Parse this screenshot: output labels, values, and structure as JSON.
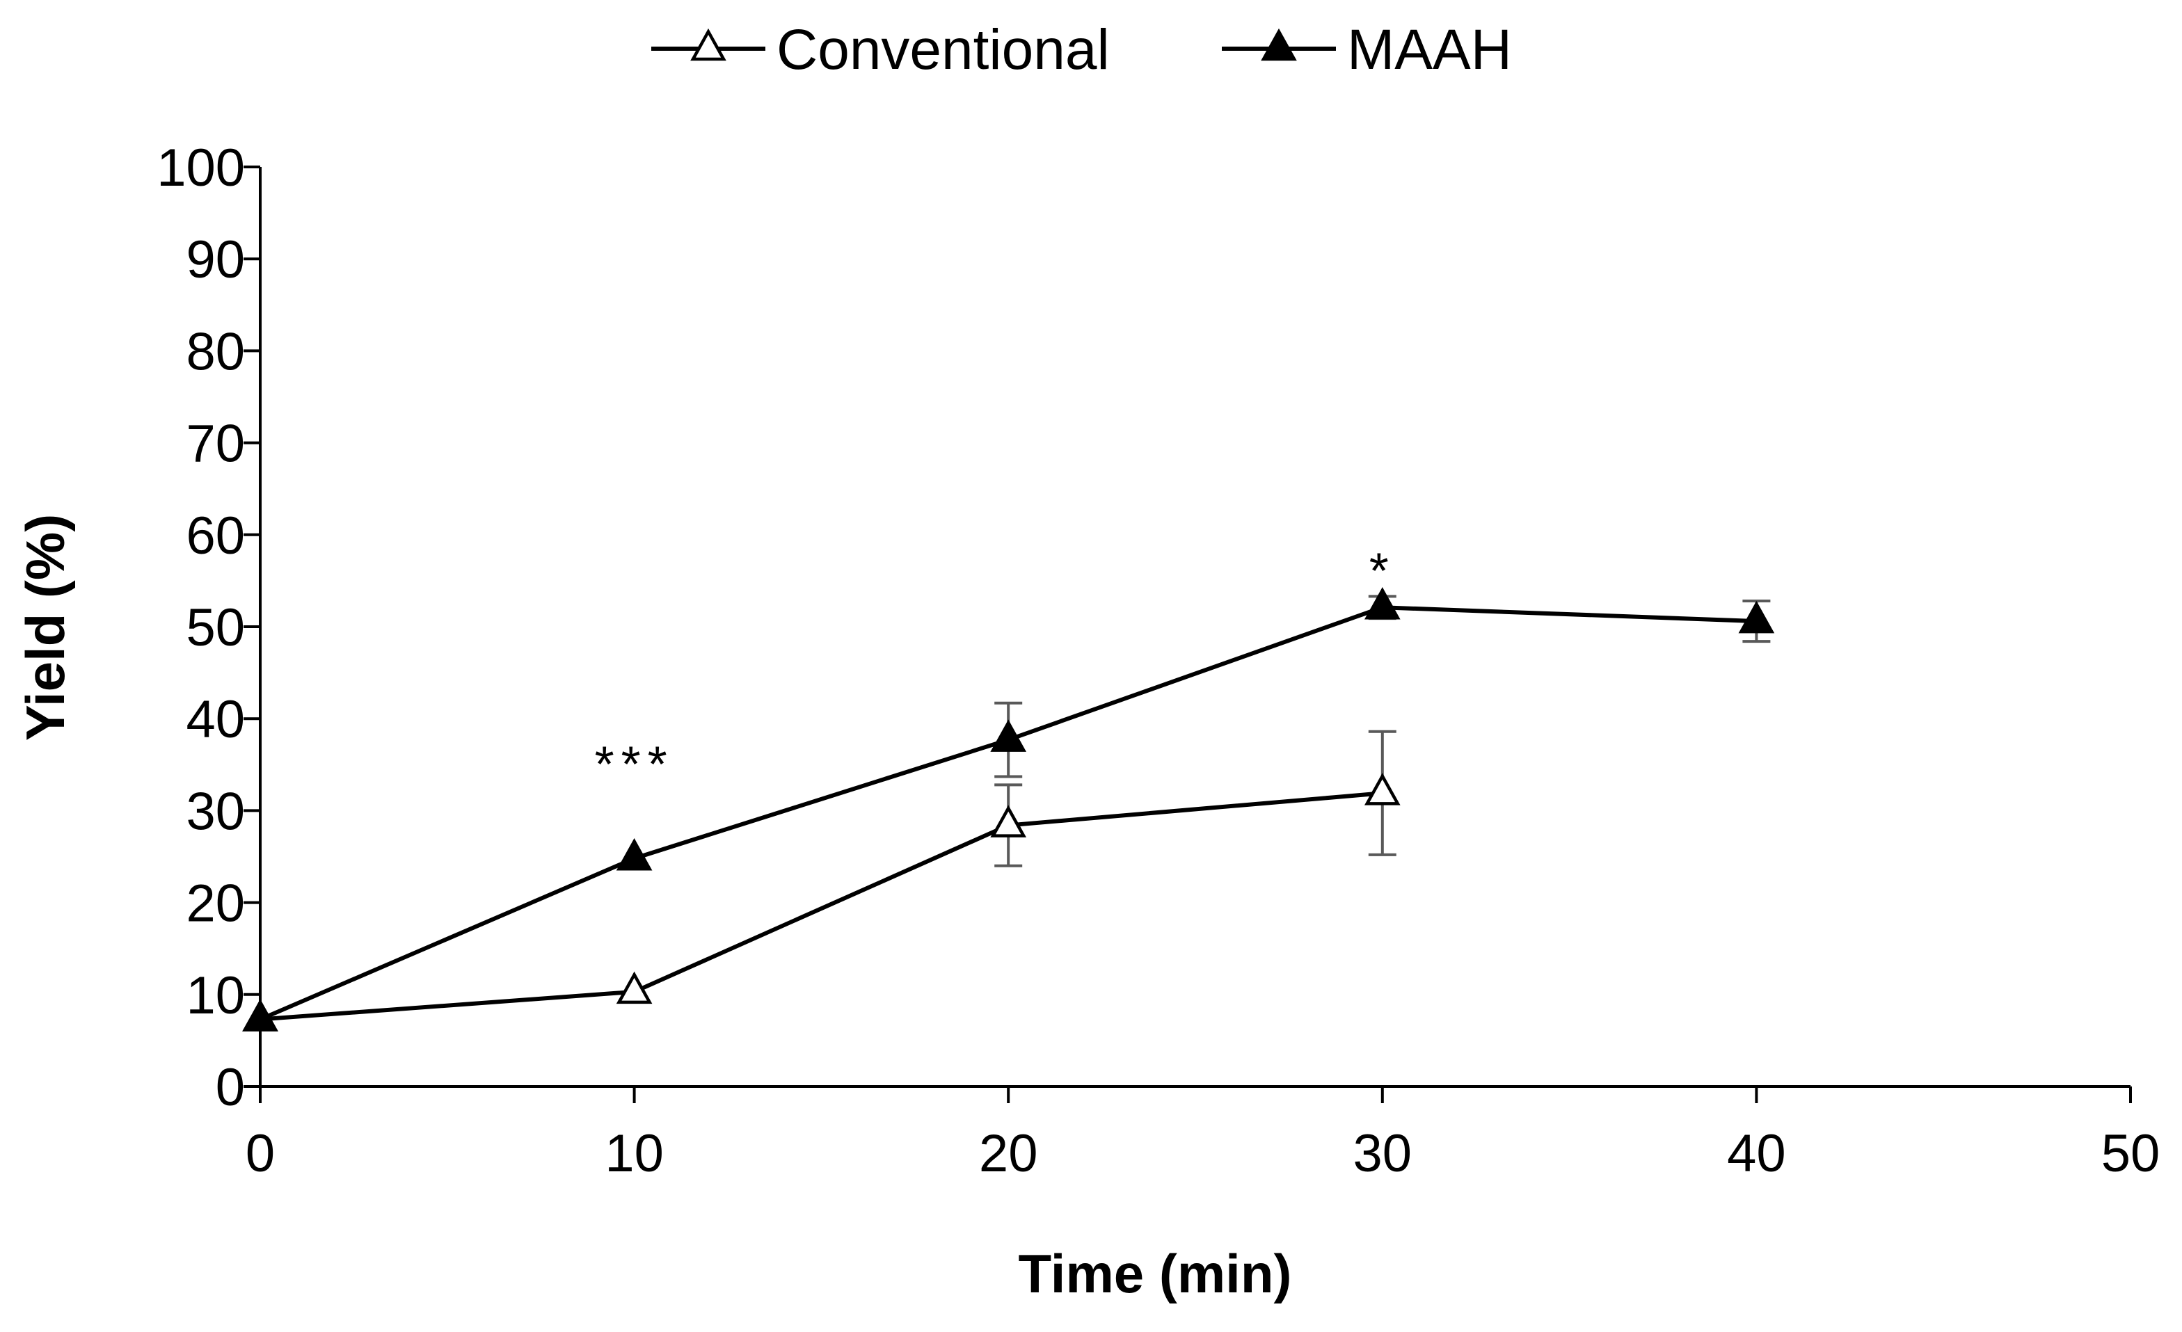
{
  "chart_data": {
    "type": "line",
    "title": "",
    "xlabel": "Time (min)",
    "ylabel": "Yield (%)",
    "xlim": [
      0,
      50
    ],
    "ylim": [
      0,
      100
    ],
    "xticks": [
      0,
      10,
      20,
      30,
      40,
      50
    ],
    "yticks": [
      0,
      10,
      20,
      30,
      40,
      50,
      60,
      70,
      80,
      90,
      100
    ],
    "grid": false,
    "legend_position": "top-center",
    "series": [
      {
        "name": "Conventional",
        "marker": "open-triangle",
        "x": [
          0,
          10,
          20,
          30
        ],
        "y": [
          7.3,
          10.3,
          28.4,
          31.9
        ],
        "error": [
          null,
          null,
          4.4,
          6.7
        ]
      },
      {
        "name": "MAAH",
        "marker": "filled-triangle",
        "x": [
          0,
          10,
          20,
          30,
          40
        ],
        "y": [
          7.3,
          24.8,
          37.7,
          52.1,
          50.6
        ],
        "error": [
          null,
          null,
          4.0,
          1.2,
          2.2
        ]
      }
    ],
    "annotations": [
      {
        "text": "***",
        "x": 10,
        "y": 35
      },
      {
        "text": "*",
        "x": 30,
        "y": 56
      }
    ]
  },
  "colors": {
    "line": "#000000",
    "error_bar": "#595959",
    "axis": "#000000"
  }
}
